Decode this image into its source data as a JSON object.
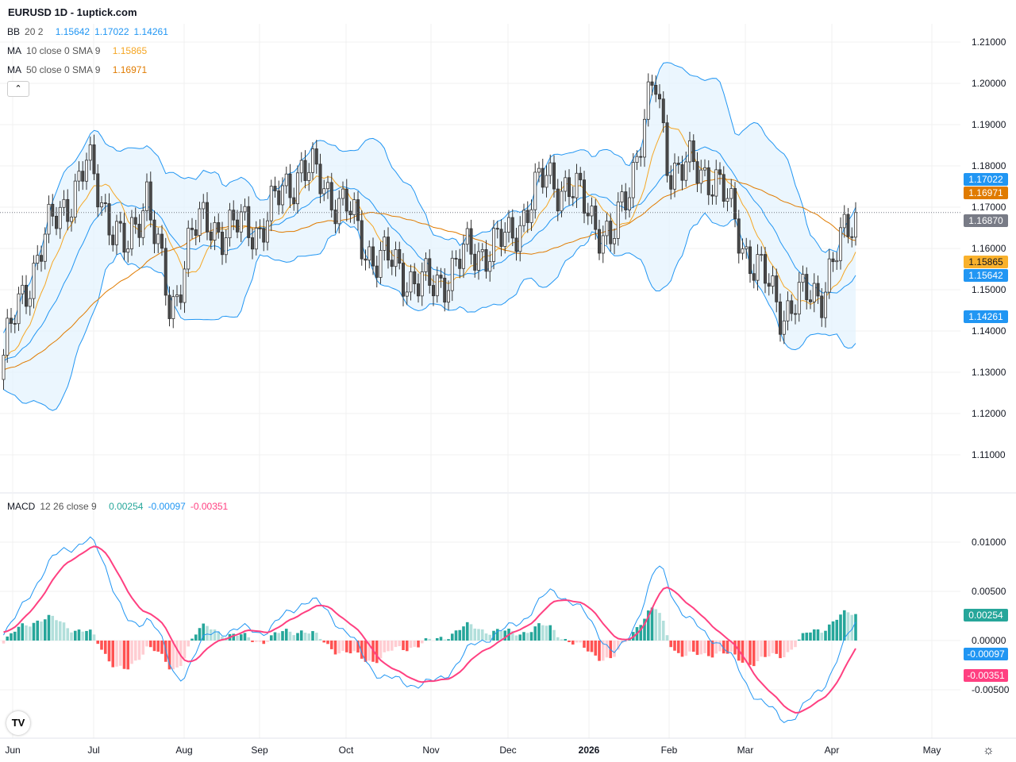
{
  "header": {
    "title": "EURUSD 1D - 1uptick.com"
  },
  "legends": {
    "bb": {
      "label": "BB",
      "params": "20 2",
      "values": [
        "1.15642",
        "1.17022",
        "1.14261"
      ]
    },
    "ma10": {
      "label": "MA",
      "params": "10 close 0 SMA 9",
      "value": "1.15865"
    },
    "ma50": {
      "label": "MA",
      "params": "50 close 0 SMA 9",
      "value": "1.16971"
    },
    "macd": {
      "label": "MACD",
      "params": "12 26 close 9",
      "values": [
        "0.00254",
        "-0.00097",
        "-0.00351"
      ]
    }
  },
  "colors": {
    "bb": "#2196f3",
    "bb_fill": "#e3f2fd",
    "ma10": "#f5a623",
    "ma50": "#e07b00",
    "up": "#ffffff",
    "down": "#4a4a4a",
    "macd": "#2196f3",
    "signal": "#ff4081",
    "hist_up": "#26a69a",
    "hist_up_light": "#b2dfdb",
    "hist_down": "#ff5252",
    "hist_down_light": "#ffcdd2"
  },
  "price_tags": [
    {
      "value": "1.17022",
      "color": "#2196f3"
    },
    {
      "value": "1.16971",
      "color": "#e07b00"
    },
    {
      "value": "1.16870",
      "color": "#787b86"
    },
    {
      "value": "1.15865",
      "color": "#f9b12c",
      "text": "#131722"
    },
    {
      "value": "1.15642",
      "color": "#2196f3"
    },
    {
      "value": "1.14261",
      "color": "#2196f3"
    }
  ],
  "macd_tags": [
    {
      "value": "0.00254",
      "color": "#26a69a"
    },
    {
      "value": "-0.00097",
      "color": "#2196f3"
    },
    {
      "value": "-0.00351",
      "color": "#ff4081"
    }
  ],
  "chart_data": [
    {
      "type": "candlestick",
      "title": "EURUSD 1D",
      "ylim": [
        1.105,
        1.215
      ],
      "yticks": [
        "1.21000",
        "1.20000",
        "1.19000",
        "1.18000",
        "1.17000",
        "1.16000",
        "1.15000",
        "1.14000",
        "1.13000",
        "1.12000",
        "1.11000"
      ],
      "xticks": [
        "Jun",
        "Jul",
        "Aug",
        "Sep",
        "Oct",
        "Nov",
        "Dec",
        "2026",
        "Feb",
        "Mar",
        "Apr",
        "May"
      ],
      "last_close": 1.1687,
      "approx_close_path": [
        [
          "Jun",
          1.135
        ],
        [
          "mid-Jun",
          1.16
        ],
        [
          "Jul",
          1.18
        ],
        [
          "mid-Jul",
          1.158
        ],
        [
          "late-Jul",
          1.175
        ],
        [
          "Aug",
          1.142
        ],
        [
          "mid-Aug",
          1.165
        ],
        [
          "Sep",
          1.165
        ],
        [
          "mid-Sep",
          1.18
        ],
        [
          "Oct",
          1.17
        ],
        [
          "mid-Oct",
          1.16
        ],
        [
          "Nov",
          1.15
        ],
        [
          "mid-Nov",
          1.158
        ],
        [
          "Dec",
          1.162
        ],
        [
          "mid-Dec",
          1.178
        ],
        [
          "2026",
          1.17
        ],
        [
          "mid-Jan",
          1.16
        ],
        [
          "late-Jan",
          1.2
        ],
        [
          "Feb",
          1.18
        ],
        [
          "mid-Feb",
          1.178
        ],
        [
          "Mar",
          1.16
        ],
        [
          "mid-Mar",
          1.145
        ],
        [
          "late-Mar",
          1.15
        ],
        [
          "Apr",
          1.1687
        ]
      ]
    },
    {
      "type": "macd",
      "ylim": [
        -0.008,
        0.0125
      ],
      "yticks": [
        "0.01000",
        "0.00500",
        "0.00000",
        "-0.00500"
      ],
      "last": {
        "histogram": 0.00254,
        "macd": -0.00097,
        "signal": -0.00351
      }
    }
  ]
}
